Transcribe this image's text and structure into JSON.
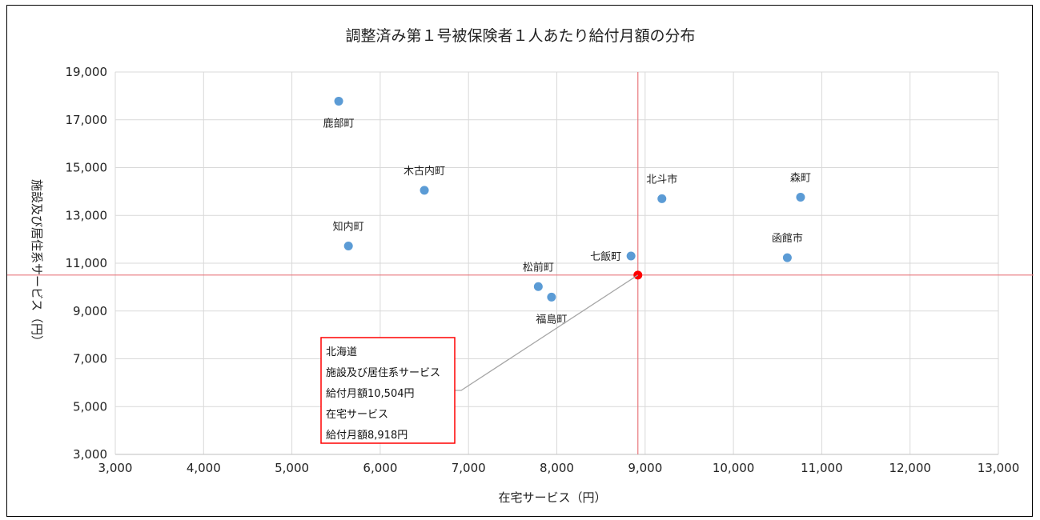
{
  "chart_data": {
    "type": "scatter",
    "title": "調整済み第１号被保険者１人あたり給付月額の分布",
    "xlabel": "在宅サービス（円）",
    "ylabel": "施設及び居住系サービス（円）",
    "xlim": [
      3000,
      13000
    ],
    "ylim": [
      3000,
      19000
    ],
    "xticks": [
      3000,
      4000,
      5000,
      6000,
      7000,
      8000,
      9000,
      10000,
      11000,
      12000,
      13000
    ],
    "yticks": [
      3000,
      5000,
      7000,
      9000,
      11000,
      13000,
      15000,
      17000,
      19000
    ],
    "xtick_labels": [
      "3,000",
      "4,000",
      "5,000",
      "6,000",
      "7,000",
      "8,000",
      "9,000",
      "10,000",
      "11,000",
      "12,000",
      "13,000"
    ],
    "ytick_labels": [
      "3,000",
      "5,000",
      "7,000",
      "9,000",
      "11,000",
      "13,000",
      "15,000",
      "17,000",
      "19,000"
    ],
    "grid": true,
    "point_color": "#5b9bd5",
    "reference_color": "#e8777b",
    "points": [
      {
        "name": "鹿部町",
        "x": 5530,
        "y": 17780,
        "label_pos": "below"
      },
      {
        "name": "木古内町",
        "x": 6500,
        "y": 14050,
        "label_pos": "above"
      },
      {
        "name": "知内町",
        "x": 5640,
        "y": 11720,
        "label_pos": "above"
      },
      {
        "name": "北斗市",
        "x": 9190,
        "y": 13700,
        "label_pos": "above"
      },
      {
        "name": "森町",
        "x": 10760,
        "y": 13760,
        "label_pos": "above"
      },
      {
        "name": "函館市",
        "x": 10610,
        "y": 11230,
        "label_pos": "above"
      },
      {
        "name": "七飯町",
        "x": 8840,
        "y": 11300,
        "label_pos": "left"
      },
      {
        "name": "松前町",
        "x": 7790,
        "y": 10020,
        "label_pos": "above"
      },
      {
        "name": "福島町",
        "x": 7940,
        "y": 9580,
        "label_pos": "below"
      }
    ],
    "reference": {
      "name": "北海道",
      "x": 8918,
      "y": 10504,
      "color": "#ff0000",
      "annotation_lines": [
        "北海道",
        "施設及び居住系サービス",
        "給付月額10,504円",
        "在宅サービス",
        "給付月額8,918円"
      ]
    }
  }
}
